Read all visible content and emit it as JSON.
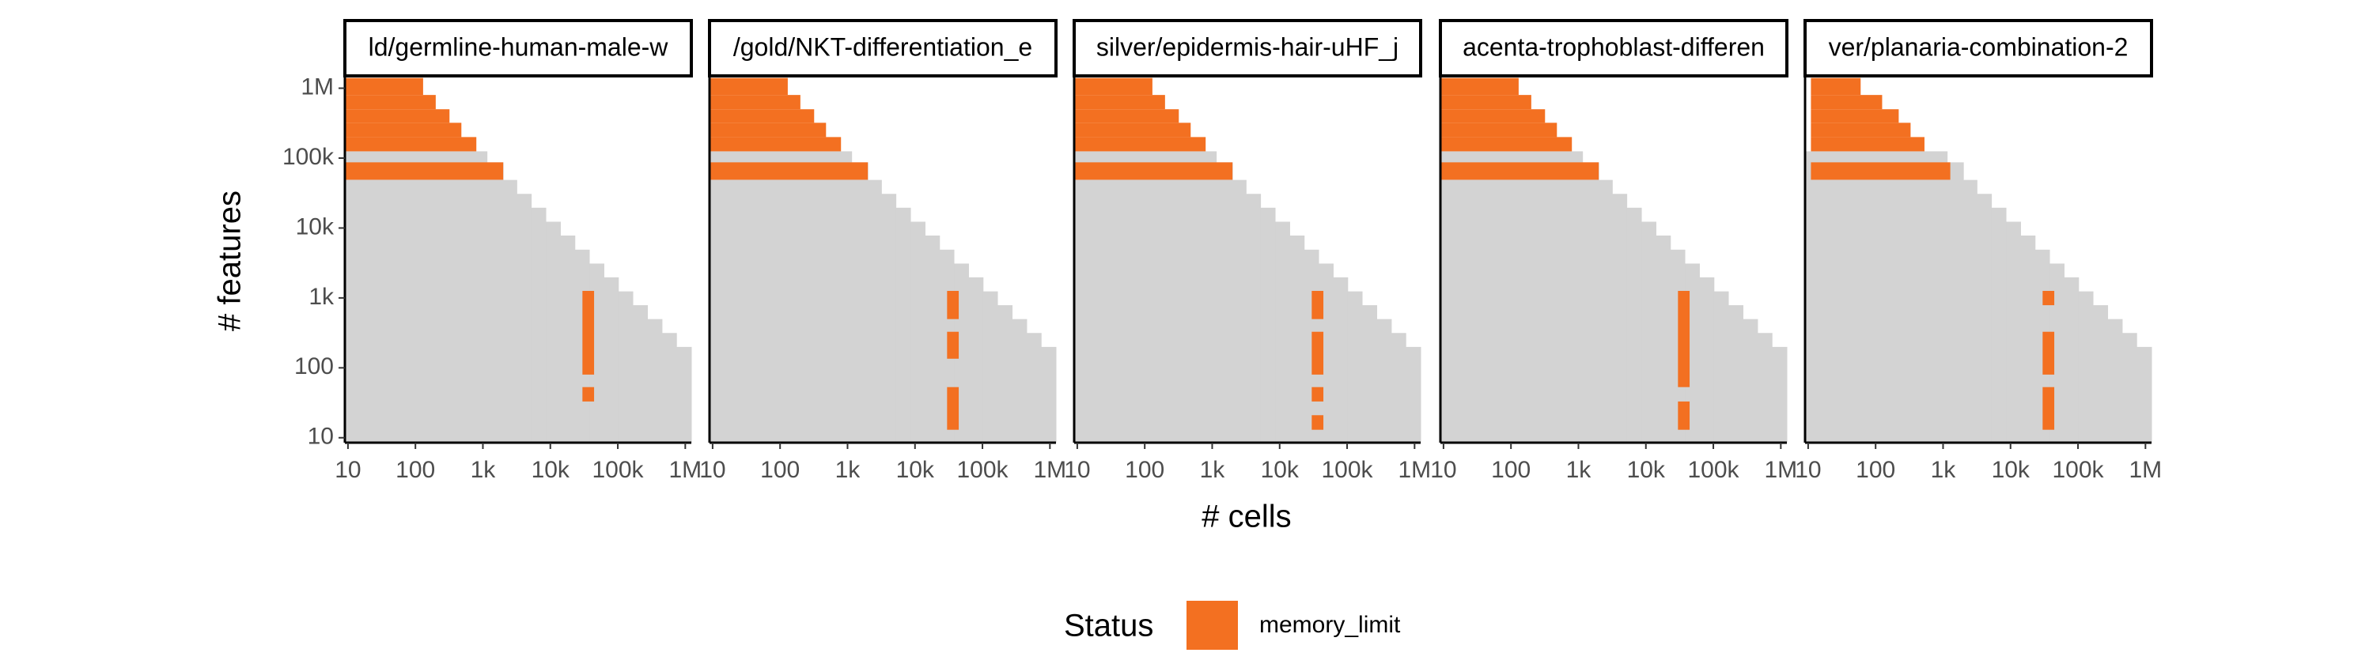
{
  "chart_data": {
    "type": "tile",
    "x_label": "# cells",
    "y_label": "# features",
    "xscale": "log",
    "yscale": "log",
    "xlim": [
      9,
      1230000
    ],
    "ylim": [
      8.5,
      1500000
    ],
    "xticks": [
      10,
      100,
      {
        "value": 1000,
        "label": "1k"
      },
      {
        "value": 10000,
        "label": "10k"
      },
      {
        "value": 100000,
        "label": "100k"
      },
      {
        "value": 1000000,
        "label": "1M"
      }
    ],
    "yticks": [
      10,
      100,
      {
        "value": 1000,
        "label": "1k"
      },
      {
        "value": 10000,
        "label": "10k"
      },
      {
        "value": 100000,
        "label": "100k"
      },
      {
        "value": 1000000,
        "label": "1M"
      }
    ],
    "background": {
      "color": "#d3d3d3",
      "steps_x": [
        1150,
        2000,
        3180,
        5210,
        8570,
        14100,
        23100,
        37800,
        62200,
        102000,
        167000,
        275000,
        452000,
        741000,
        1230000
      ],
      "steps_y": [
        125000,
        87000,
        48700,
        30800,
        19500,
        12300,
        7800,
        4900,
        3100,
        1970,
        1240,
        787,
        498,
        315,
        199
      ]
    },
    "legend_title": "Status",
    "series": [
      {
        "name": "memory_limit",
        "color": "#f37021"
      }
    ],
    "panels": [
      {
        "title": "ld/germline-human-male-w",
        "regions": [
          {
            "x": [
              9,
              130
            ],
            "y": [
              800000,
              1400000
            ]
          },
          {
            "x": [
              9,
              200
            ],
            "y": [
              500000,
              800000
            ]
          },
          {
            "x": [
              9,
              320
            ],
            "y": [
              320000,
              500000
            ]
          },
          {
            "x": [
              9,
              480
            ],
            "y": [
              200000,
              320000
            ]
          },
          {
            "x": [
              9,
              800
            ],
            "y": [
              125000,
              200000
            ]
          },
          {
            "x": [
              9,
              2000
            ],
            "y": [
              49000,
              87000
            ]
          },
          {
            "x": [
              29900,
              44500
            ],
            "y": [
              80,
              1260
            ]
          },
          {
            "x": [
              29900,
              44500
            ],
            "y": [
              33,
              53
            ]
          }
        ]
      },
      {
        "title": "/gold/NKT-differentiation_e",
        "regions": [
          {
            "x": [
              9,
              130
            ],
            "y": [
              800000,
              1400000
            ]
          },
          {
            "x": [
              9,
              200
            ],
            "y": [
              500000,
              800000
            ]
          },
          {
            "x": [
              9,
              320
            ],
            "y": [
              320000,
              500000
            ]
          },
          {
            "x": [
              9,
              480
            ],
            "y": [
              200000,
              320000
            ]
          },
          {
            "x": [
              9,
              800
            ],
            "y": [
              125000,
              200000
            ]
          },
          {
            "x": [
              9,
              2000
            ],
            "y": [
              49000,
              87000
            ]
          },
          {
            "x": [
              29900,
              44500
            ],
            "y": [
              498,
              1260
            ]
          },
          {
            "x": [
              29900,
              44500
            ],
            "y": [
              135,
              328
            ]
          },
          {
            "x": [
              29900,
              44500
            ],
            "y": [
              13,
              53
            ]
          }
        ]
      },
      {
        "title": "silver/epidermis-hair-uHF_j",
        "regions": [
          {
            "x": [
              9,
              130
            ],
            "y": [
              800000,
              1400000
            ]
          },
          {
            "x": [
              9,
              200
            ],
            "y": [
              500000,
              800000
            ]
          },
          {
            "x": [
              9,
              320
            ],
            "y": [
              320000,
              500000
            ]
          },
          {
            "x": [
              9,
              480
            ],
            "y": [
              200000,
              320000
            ]
          },
          {
            "x": [
              9,
              800
            ],
            "y": [
              125000,
              200000
            ]
          },
          {
            "x": [
              9,
              2000
            ],
            "y": [
              49000,
              87000
            ]
          },
          {
            "x": [
              29900,
              44500
            ],
            "y": [
              498,
              1260
            ]
          },
          {
            "x": [
              29900,
              44500
            ],
            "y": [
              80,
              328
            ]
          },
          {
            "x": [
              29900,
              44500
            ],
            "y": [
              33,
              53
            ]
          },
          {
            "x": [
              29900,
              44500
            ],
            "y": [
              13,
              21
            ]
          }
        ]
      },
      {
        "title": "acenta-trophoblast-differen",
        "regions": [
          {
            "x": [
              9,
              130
            ],
            "y": [
              800000,
              1400000
            ]
          },
          {
            "x": [
              9,
              200
            ],
            "y": [
              500000,
              800000
            ]
          },
          {
            "x": [
              9,
              320
            ],
            "y": [
              320000,
              500000
            ]
          },
          {
            "x": [
              9,
              480
            ],
            "y": [
              200000,
              320000
            ]
          },
          {
            "x": [
              9,
              800
            ],
            "y": [
              125000,
              200000
            ]
          },
          {
            "x": [
              9,
              2000
            ],
            "y": [
              49000,
              87000
            ]
          },
          {
            "x": [
              29900,
              44500
            ],
            "y": [
              53,
              1260
            ]
          },
          {
            "x": [
              29900,
              44500
            ],
            "y": [
              13,
              33
            ]
          }
        ]
      },
      {
        "title": "ver/planaria-combination-2",
        "regions": [
          {
            "x": [
              11,
              60
            ],
            "y": [
              800000,
              1400000
            ]
          },
          {
            "x": [
              11,
              125
            ],
            "y": [
              500000,
              800000
            ]
          },
          {
            "x": [
              11,
              220
            ],
            "y": [
              320000,
              500000
            ]
          },
          {
            "x": [
              11,
              330
            ],
            "y": [
              200000,
              320000
            ]
          },
          {
            "x": [
              11,
              530
            ],
            "y": [
              125000,
              200000
            ]
          },
          {
            "x": [
              11,
              1280
            ],
            "y": [
              49000,
              87000
            ]
          },
          {
            "x": [
              29900,
              44500
            ],
            "y": [
              787,
              1260
            ]
          },
          {
            "x": [
              29900,
              44500
            ],
            "y": [
              80,
              328
            ]
          },
          {
            "x": [
              29900,
              44500
            ],
            "y": [
              13,
              53
            ]
          }
        ]
      }
    ]
  }
}
